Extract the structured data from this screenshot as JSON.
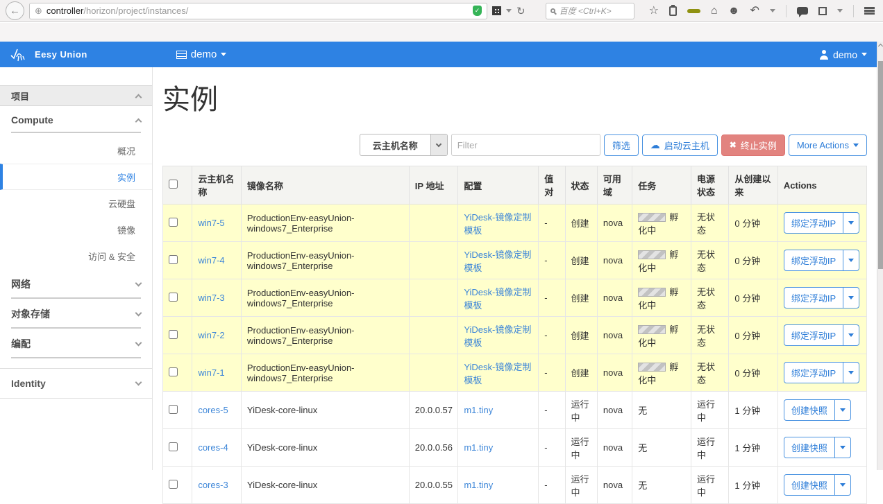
{
  "browser": {
    "url_host": "controller",
    "url_path": "/horizon/project/instances/",
    "search_placeholder": "百度 <Ctrl+K>",
    "icons": {
      "back": "←",
      "reload": "↻",
      "star": "☆",
      "home": "⌂",
      "smiley": "☻",
      "undo": "↶",
      "shield_check": "✓"
    }
  },
  "navbar": {
    "brand": "Eesy Union",
    "project": "demo",
    "user": "demo"
  },
  "sidebar": {
    "project_header": "项目",
    "compute_header": "Compute",
    "items": [
      {
        "label": "概况",
        "active": false
      },
      {
        "label": "实例",
        "active": true
      },
      {
        "label": "云硬盘",
        "active": false
      },
      {
        "label": "镜像",
        "active": false
      },
      {
        "label": "访问 & 安全",
        "active": false
      }
    ],
    "sections": [
      {
        "label": "网络"
      },
      {
        "label": "对象存储"
      },
      {
        "label": "编配"
      }
    ],
    "identity": "Identity"
  },
  "page": {
    "title": "实例",
    "filter_field": "云主机名称",
    "filter_placeholder": "Filter",
    "filter_button": "筛选",
    "launch_button": "启动云主机",
    "terminate_button": "终止实例",
    "more_actions": "More Actions"
  },
  "table": {
    "headers": [
      "云主机名称",
      "镜像名称",
      "IP 地址",
      "配置",
      "值对",
      "状态",
      "可用域",
      "任务",
      "电源状态",
      "从创建以来",
      "Actions"
    ],
    "rows": [
      {
        "name": "win7-5",
        "image": "ProductionEnv-easyUnion-windows7_Enterprise",
        "ip": "",
        "flavor": "YiDesk-镜像定制模板",
        "keypair": "-",
        "status": "创建",
        "az": "nova",
        "task": "孵化中",
        "task_progress": true,
        "power": "无状态",
        "age": "0 分钟",
        "action": "绑定浮动IP",
        "highlight": true
      },
      {
        "name": "win7-4",
        "image": "ProductionEnv-easyUnion-windows7_Enterprise",
        "ip": "",
        "flavor": "YiDesk-镜像定制模板",
        "keypair": "-",
        "status": "创建",
        "az": "nova",
        "task": "孵化中",
        "task_progress": true,
        "power": "无状态",
        "age": "0 分钟",
        "action": "绑定浮动IP",
        "highlight": true
      },
      {
        "name": "win7-3",
        "image": "ProductionEnv-easyUnion-windows7_Enterprise",
        "ip": "",
        "flavor": "YiDesk-镜像定制模板",
        "keypair": "-",
        "status": "创建",
        "az": "nova",
        "task": "孵化中",
        "task_progress": true,
        "power": "无状态",
        "age": "0 分钟",
        "action": "绑定浮动IP",
        "highlight": true
      },
      {
        "name": "win7-2",
        "image": "ProductionEnv-easyUnion-windows7_Enterprise",
        "ip": "",
        "flavor": "YiDesk-镜像定制模板",
        "keypair": "-",
        "status": "创建",
        "az": "nova",
        "task": "孵化中",
        "task_progress": true,
        "power": "无状态",
        "age": "0 分钟",
        "action": "绑定浮动IP",
        "highlight": true
      },
      {
        "name": "win7-1",
        "image": "ProductionEnv-easyUnion-windows7_Enterprise",
        "ip": "",
        "flavor": "YiDesk-镜像定制模板",
        "keypair": "-",
        "status": "创建",
        "az": "nova",
        "task": "孵化中",
        "task_progress": true,
        "power": "无状态",
        "age": "0 分钟",
        "action": "绑定浮动IP",
        "highlight": true
      },
      {
        "name": "cores-5",
        "image": "YiDesk-core-linux",
        "ip": "20.0.0.57",
        "flavor": "m1.tiny",
        "keypair": "-",
        "status": "运行中",
        "az": "nova",
        "task": "无",
        "task_progress": false,
        "power": "运行中",
        "age": "1 分钟",
        "action": "创建快照",
        "highlight": false
      },
      {
        "name": "cores-4",
        "image": "YiDesk-core-linux",
        "ip": "20.0.0.56",
        "flavor": "m1.tiny",
        "keypair": "-",
        "status": "运行中",
        "az": "nova",
        "task": "无",
        "task_progress": false,
        "power": "运行中",
        "age": "1 分钟",
        "action": "创建快照",
        "highlight": false
      },
      {
        "name": "cores-3",
        "image": "YiDesk-core-linux",
        "ip": "20.0.0.55",
        "flavor": "m1.tiny",
        "keypair": "-",
        "status": "运行中",
        "az": "nova",
        "task": "无",
        "task_progress": false,
        "power": "运行中",
        "age": "1 分钟",
        "action": "创建快照",
        "highlight": false
      }
    ]
  },
  "colors": {
    "accent": "#2e82e3",
    "link": "#3d86d8",
    "danger": "#e2837f",
    "row_highlight": "#ffffcc"
  }
}
